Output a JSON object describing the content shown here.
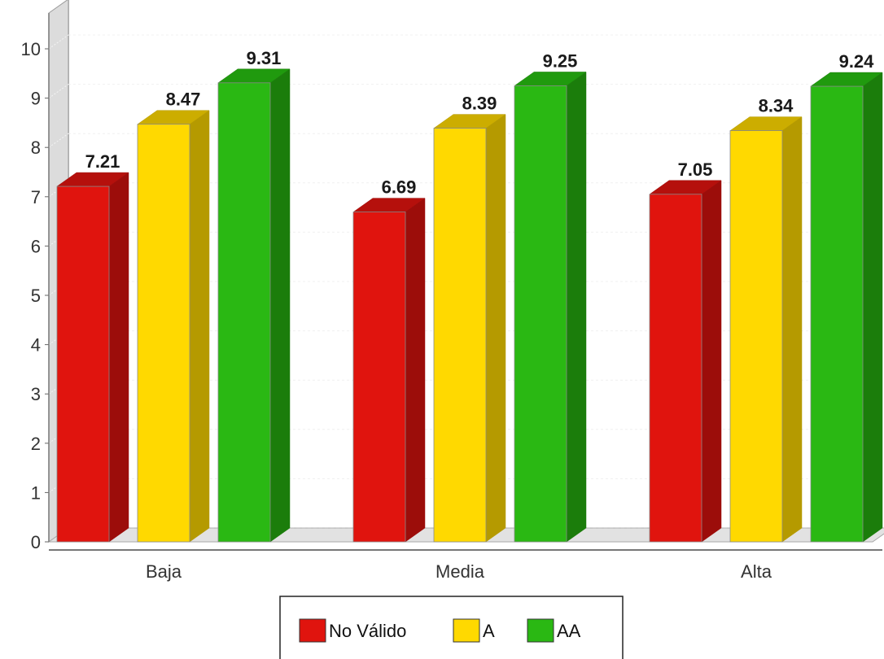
{
  "chart_data": {
    "type": "bar",
    "categories": [
      "Baja",
      "Media",
      "Alta"
    ],
    "series": [
      {
        "name": "No Válido",
        "values": [
          7.21,
          6.69,
          7.05
        ],
        "color": "#e0140e",
        "side_color": "#9c0d0a",
        "top_color": "#b5100c"
      },
      {
        "name": "A",
        "values": [
          8.47,
          8.39,
          8.34
        ],
        "color": "#ffd900",
        "side_color": "#b59a00",
        "top_color": "#ccad00"
      },
      {
        "name": "AA",
        "values": [
          9.31,
          9.25,
          9.24
        ],
        "color": "#2ab813",
        "side_color": "#1b7d0b",
        "top_color": "#209a0e"
      }
    ],
    "title": "",
    "xlabel": "",
    "ylabel": "",
    "ylim": [
      0,
      10
    ],
    "yticks": [
      "0",
      "1",
      "2",
      "3",
      "4",
      "5",
      "6",
      "7",
      "8",
      "9",
      "10"
    ],
    "three_d": true,
    "grid": true,
    "legend_position": "bottom-center"
  }
}
